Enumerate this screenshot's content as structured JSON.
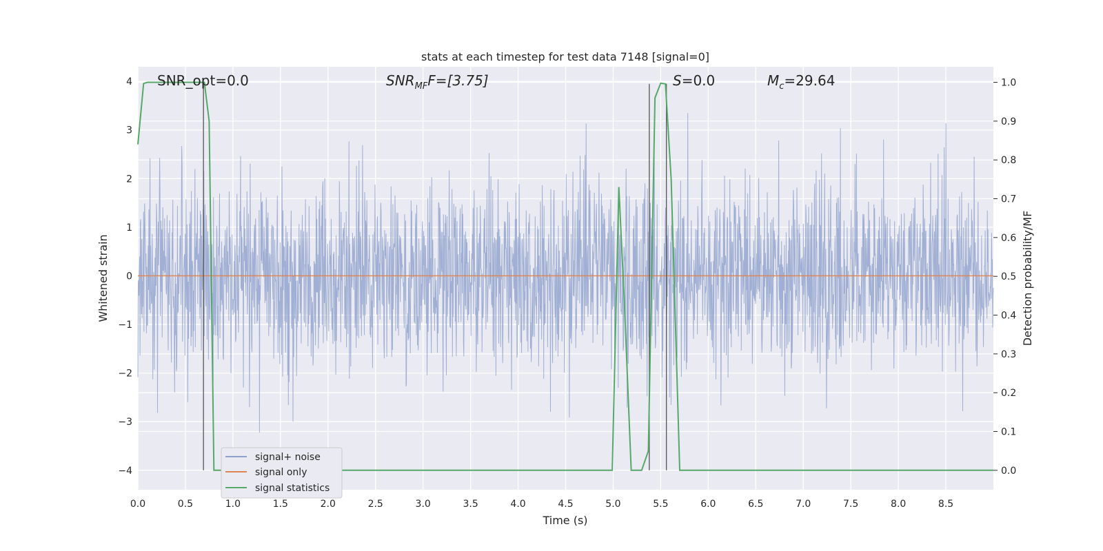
{
  "chart_data": {
    "type": "line",
    "title": "stats at each timestep for test data 7148 [signal=0]",
    "xlabel": "Time (s)",
    "ylabel": "Whitened strain",
    "y2label": "Detection probability/MF",
    "xlim": [
      0.0,
      9.0
    ],
    "ylim": [
      -4.4,
      4.3
    ],
    "y2lim": [
      -0.05,
      1.04
    ],
    "xticks": [
      "0.0",
      "0.5",
      "1.0",
      "1.5",
      "2.0",
      "2.5",
      "3.0",
      "3.5",
      "4.0",
      "4.5",
      "5.0",
      "5.5",
      "6.0",
      "6.5",
      "7.0",
      "7.5",
      "8.0",
      "8.5"
    ],
    "yticks": [
      "4",
      "3",
      "2",
      "1",
      "0",
      "−1",
      "−2",
      "−3",
      "−4"
    ],
    "y2ticks": [
      "1.0",
      "0.9",
      "0.8",
      "0.7",
      "0.6",
      "0.5",
      "0.4",
      "0.3",
      "0.2",
      "0.1",
      "0.0"
    ],
    "grid": true,
    "legend_placement": "lower-left",
    "annotations": {
      "snr_opt": "SNR_opt=0.0",
      "snr_mf_base": "SNR",
      "snr_mf_sub": "MF",
      "snr_mf_rest": "F=[3.75]",
      "s_base": "S",
      "s_rest": "=0.0",
      "mc_base": "M",
      "mc_sub": "c",
      "mc_rest": "=29.64"
    },
    "vertical_markers_s": [
      0.69,
      5.38,
      5.56
    ],
    "series": [
      {
        "name": "signal+ noise",
        "color": "#8da0cb",
        "noise_profile": "whitened gaussian, amplitude roughly ±2 with spikes to ±3.9"
      },
      {
        "name": "signal only",
        "color": "#dd8452",
        "values_constant": 0.0
      },
      {
        "name": "signal statistics",
        "color": "#55a868",
        "axis": "right",
        "x": [
          0.0,
          0.06,
          0.1,
          0.2,
          0.3,
          0.4,
          0.5,
          0.6,
          0.7,
          0.75,
          0.8,
          1.0,
          2.0,
          3.0,
          4.0,
          4.9,
          4.99,
          5.06,
          5.12,
          5.19,
          5.3,
          5.37,
          5.44,
          5.5,
          5.55,
          5.61,
          5.7,
          6.0,
          7.0,
          8.0,
          9.0
        ],
        "values": [
          0.84,
          0.997,
          1.0,
          1.0,
          1.0,
          1.0,
          1.0,
          1.0,
          1.0,
          0.9,
          0.0,
          0.0,
          0.0,
          0.0,
          0.0,
          0.0,
          0.0,
          0.73,
          0.42,
          0.0,
          0.0,
          0.05,
          0.96,
          0.998,
          0.996,
          0.75,
          0.0,
          0.0,
          0.0,
          0.0,
          0.0
        ]
      }
    ]
  }
}
